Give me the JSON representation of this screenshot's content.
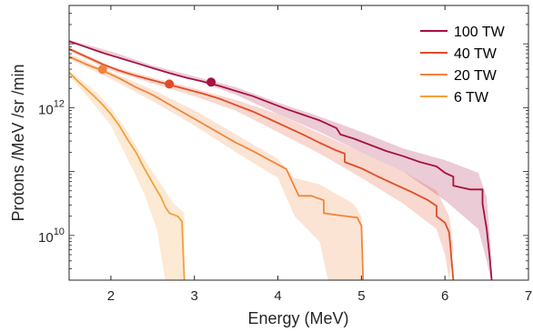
{
  "chart_data": {
    "type": "line",
    "xlabel": "Energy (MeV)",
    "ylabel": "Protons /MeV /sr /min",
    "xlim": [
      1.5,
      7
    ],
    "ylim_log10": [
      9.3,
      13.6
    ],
    "y_scale": "log",
    "x_ticks": [
      {
        "value": 2,
        "label": "2"
      },
      {
        "value": 3,
        "label": "3"
      },
      {
        "value": 4,
        "label": "4"
      },
      {
        "value": 5,
        "label": "5"
      },
      {
        "value": 6,
        "label": "6"
      },
      {
        "value": 7,
        "label": "7"
      }
    ],
    "y_ticks": [
      {
        "log10": 12,
        "base": "10",
        "exp": "12"
      },
      {
        "log10": 10,
        "base": "10",
        "exp": "10"
      }
    ],
    "legend_position": "top-right",
    "series": [
      {
        "name": "100 TW",
        "color": "#A6123F",
        "marker": {
          "x": 3.2,
          "log10": 12.4
        },
        "line_log10": [
          [
            1.5,
            13.04
          ],
          [
            1.7,
            12.95
          ],
          [
            1.9,
            12.86
          ],
          [
            2.1,
            12.78
          ],
          [
            2.3,
            12.7
          ],
          [
            2.5,
            12.62
          ],
          [
            2.7,
            12.54
          ],
          [
            2.9,
            12.47
          ],
          [
            3.1,
            12.41
          ],
          [
            3.3,
            12.34
          ],
          [
            3.5,
            12.26
          ],
          [
            3.7,
            12.18
          ],
          [
            3.9,
            12.08
          ],
          [
            4.1,
            11.98
          ],
          [
            4.3,
            11.89
          ],
          [
            4.5,
            11.8
          ],
          [
            4.7,
            11.68
          ],
          [
            4.75,
            11.58
          ],
          [
            4.9,
            11.52
          ],
          [
            5.1,
            11.42
          ],
          [
            5.3,
            11.32
          ],
          [
            5.5,
            11.24
          ],
          [
            5.7,
            11.15
          ],
          [
            5.9,
            11.08
          ],
          [
            6.0,
            10.98
          ],
          [
            6.1,
            10.92
          ],
          [
            6.1,
            10.78
          ],
          [
            6.3,
            10.72
          ],
          [
            6.45,
            10.72
          ],
          [
            6.45,
            10.5
          ],
          [
            6.5,
            10.1
          ],
          [
            6.54,
            9.6
          ],
          [
            6.56,
            9.3
          ]
        ],
        "band_upper_log10": [
          [
            1.5,
            13.06
          ],
          [
            2.0,
            12.88
          ],
          [
            2.5,
            12.66
          ],
          [
            3.0,
            12.49
          ],
          [
            3.5,
            12.32
          ],
          [
            4.0,
            12.08
          ],
          [
            4.5,
            11.86
          ],
          [
            5.0,
            11.62
          ],
          [
            5.5,
            11.36
          ],
          [
            6.0,
            11.18
          ],
          [
            6.4,
            10.98
          ],
          [
            6.5,
            10.6
          ],
          [
            6.55,
            9.8
          ]
        ],
        "band_lower_log10": [
          [
            1.5,
            13.02
          ],
          [
            2.0,
            12.84
          ],
          [
            2.5,
            12.6
          ],
          [
            3.0,
            12.44
          ],
          [
            3.5,
            12.2
          ],
          [
            4.0,
            11.9
          ],
          [
            4.5,
            11.62
          ],
          [
            5.0,
            11.3
          ],
          [
            5.5,
            11.0
          ],
          [
            6.0,
            10.55
          ],
          [
            6.4,
            10.1
          ],
          [
            6.5,
            9.6
          ],
          [
            6.55,
            9.3
          ]
        ]
      },
      {
        "name": "40 TW",
        "color": "#E04D25",
        "marker": {
          "x": 2.7,
          "log10": 12.37
        },
        "line_log10": [
          [
            1.5,
            12.92
          ],
          [
            1.7,
            12.8
          ],
          [
            1.9,
            12.68
          ],
          [
            2.1,
            12.58
          ],
          [
            2.3,
            12.5
          ],
          [
            2.5,
            12.43
          ],
          [
            2.7,
            12.36
          ],
          [
            2.9,
            12.29
          ],
          [
            3.1,
            12.22
          ],
          [
            3.3,
            12.14
          ],
          [
            3.5,
            12.04
          ],
          [
            3.7,
            11.94
          ],
          [
            3.9,
            11.82
          ],
          [
            4.1,
            11.7
          ],
          [
            4.3,
            11.58
          ],
          [
            4.5,
            11.45
          ],
          [
            4.7,
            11.33
          ],
          [
            4.8,
            11.28
          ],
          [
            4.8,
            11.15
          ],
          [
            5.0,
            11.05
          ],
          [
            5.2,
            10.92
          ],
          [
            5.4,
            10.8
          ],
          [
            5.6,
            10.68
          ],
          [
            5.8,
            10.55
          ],
          [
            5.9,
            10.46
          ],
          [
            5.9,
            10.3
          ],
          [
            6.0,
            10.2
          ],
          [
            6.05,
            10.05
          ],
          [
            6.1,
            9.3
          ]
        ],
        "band_upper_log10": [
          [
            1.5,
            12.95
          ],
          [
            2.0,
            12.65
          ],
          [
            2.5,
            12.47
          ],
          [
            3.0,
            12.3
          ],
          [
            3.5,
            12.12
          ],
          [
            4.0,
            11.9
          ],
          [
            4.5,
            11.6
          ],
          [
            5.0,
            11.3
          ],
          [
            5.5,
            11.0
          ],
          [
            5.9,
            10.7
          ],
          [
            6.05,
            10.3
          ],
          [
            6.1,
            9.8
          ]
        ],
        "band_lower_log10": [
          [
            1.5,
            12.89
          ],
          [
            2.0,
            12.58
          ],
          [
            2.5,
            12.38
          ],
          [
            3.0,
            12.18
          ],
          [
            3.5,
            11.95
          ],
          [
            4.0,
            11.62
          ],
          [
            4.5,
            11.28
          ],
          [
            5.0,
            10.9
          ],
          [
            5.5,
            10.5
          ],
          [
            5.9,
            10.1
          ],
          [
            6.0,
            9.7
          ],
          [
            6.05,
            9.3
          ]
        ]
      },
      {
        "name": "20 TW",
        "color": "#F0853A",
        "marker": {
          "x": 1.9,
          "log10": 12.6
        },
        "line_log10": [
          [
            1.5,
            12.8
          ],
          [
            1.7,
            12.68
          ],
          [
            1.9,
            12.58
          ],
          [
            2.1,
            12.46
          ],
          [
            2.3,
            12.32
          ],
          [
            2.5,
            12.2
          ],
          [
            2.7,
            12.05
          ],
          [
            2.9,
            11.9
          ],
          [
            3.1,
            11.75
          ],
          [
            3.3,
            11.6
          ],
          [
            3.5,
            11.45
          ],
          [
            3.7,
            11.32
          ],
          [
            3.9,
            11.18
          ],
          [
            4.1,
            11.04
          ],
          [
            4.15,
            10.9
          ],
          [
            4.25,
            10.62
          ],
          [
            4.4,
            10.62
          ],
          [
            4.55,
            10.55
          ],
          [
            4.55,
            10.35
          ],
          [
            4.7,
            10.32
          ],
          [
            4.95,
            10.28
          ],
          [
            5.0,
            10.15
          ],
          [
            5.02,
            9.3
          ]
        ],
        "band_upper_log10": [
          [
            1.5,
            12.84
          ],
          [
            2.0,
            12.56
          ],
          [
            2.5,
            12.28
          ],
          [
            3.0,
            11.96
          ],
          [
            3.5,
            11.58
          ],
          [
            4.0,
            11.2
          ],
          [
            4.2,
            10.9
          ],
          [
            4.5,
            10.8
          ],
          [
            4.9,
            10.5
          ],
          [
            5.0,
            10.3
          ]
        ],
        "band_lower_log10": [
          [
            1.5,
            12.76
          ],
          [
            2.0,
            12.45
          ],
          [
            2.5,
            12.1
          ],
          [
            3.0,
            11.72
          ],
          [
            3.5,
            11.3
          ],
          [
            4.0,
            10.9
          ],
          [
            4.2,
            10.3
          ],
          [
            4.5,
            9.9
          ],
          [
            4.6,
            9.3
          ],
          [
            5.0,
            9.3
          ]
        ]
      },
      {
        "name": "6  TW",
        "color": "#F4A03C",
        "line_log10": [
          [
            1.5,
            12.55
          ],
          [
            1.6,
            12.42
          ],
          [
            1.7,
            12.3
          ],
          [
            1.8,
            12.18
          ],
          [
            1.9,
            12.05
          ],
          [
            2.0,
            11.9
          ],
          [
            2.1,
            11.72
          ],
          [
            2.2,
            11.5
          ],
          [
            2.3,
            11.3
          ],
          [
            2.4,
            11.05
          ],
          [
            2.5,
            10.82
          ],
          [
            2.6,
            10.6
          ],
          [
            2.65,
            10.45
          ],
          [
            2.7,
            10.35
          ],
          [
            2.8,
            10.3
          ],
          [
            2.85,
            10.22
          ],
          [
            2.88,
            9.3
          ]
        ],
        "band_upper_log10": [
          [
            1.5,
            12.58
          ],
          [
            1.8,
            12.28
          ],
          [
            2.0,
            12.0
          ],
          [
            2.2,
            11.62
          ],
          [
            2.4,
            11.2
          ],
          [
            2.6,
            10.8
          ],
          [
            2.75,
            10.5
          ],
          [
            2.88,
            10.35
          ]
        ],
        "band_lower_log10": [
          [
            1.5,
            12.5
          ],
          [
            1.8,
            12.05
          ],
          [
            2.0,
            11.72
          ],
          [
            2.2,
            11.2
          ],
          [
            2.4,
            10.65
          ],
          [
            2.55,
            10.1
          ],
          [
            2.65,
            9.3
          ],
          [
            2.88,
            9.3
          ]
        ]
      }
    ]
  }
}
